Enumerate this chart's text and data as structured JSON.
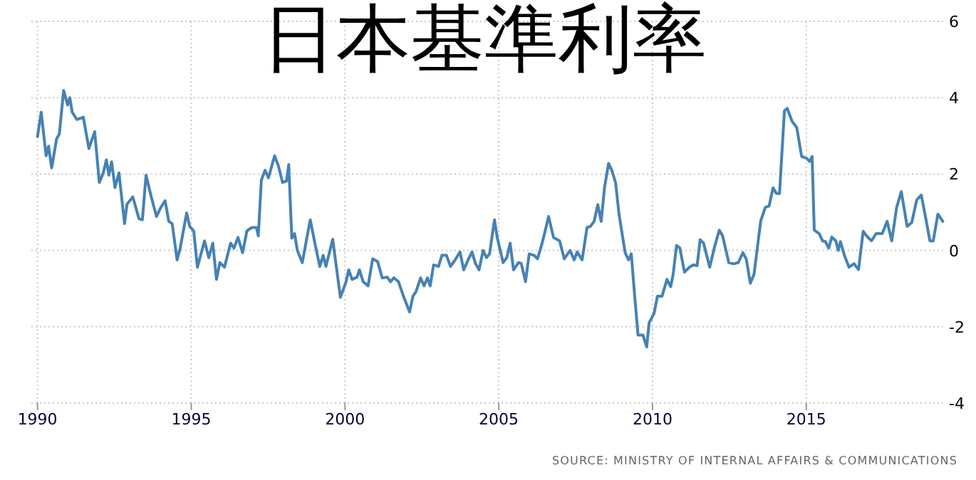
{
  "chart_data": {
    "type": "line",
    "title": "日本基準利率",
    "x": [
      1990.0,
      1990.12,
      1990.28,
      1990.36,
      1990.46,
      1990.62,
      1990.71,
      1990.85,
      1990.98,
      1991.05,
      1991.13,
      1991.28,
      1991.49,
      1991.67,
      1991.86,
      1992.01,
      1992.14,
      1992.24,
      1992.32,
      1992.41,
      1992.52,
      1992.65,
      1992.83,
      1992.91,
      1993.1,
      1993.3,
      1993.41,
      1993.53,
      1993.7,
      1993.87,
      1994.02,
      1994.15,
      1994.27,
      1994.38,
      1994.54,
      1994.64,
      1994.85,
      1994.95,
      1995.08,
      1995.2,
      1995.43,
      1995.57,
      1995.7,
      1995.82,
      1995.93,
      1996.08,
      1996.28,
      1996.39,
      1996.52,
      1996.67,
      1996.81,
      1996.97,
      1997.12,
      1997.18,
      1997.28,
      1997.4,
      1997.51,
      1997.71,
      1997.83,
      1997.97,
      1998.1,
      1998.17,
      1998.27,
      1998.36,
      1998.45,
      1998.61,
      1998.87,
      1999.02,
      1999.18,
      1999.29,
      1999.38,
      1999.6,
      1999.85,
      2000.03,
      2000.12,
      2000.23,
      2000.39,
      2000.47,
      2000.59,
      2000.75,
      2000.9,
      2001.06,
      2001.21,
      2001.37,
      2001.48,
      2001.59,
      2001.74,
      2001.9,
      2002.1,
      2002.21,
      2002.31,
      2002.46,
      2002.57,
      2002.68,
      2002.77,
      2002.88,
      2003.04,
      2003.15,
      2003.3,
      2003.43,
      2003.58,
      2003.74,
      2003.86,
      2004.02,
      2004.13,
      2004.24,
      2004.36,
      2004.49,
      2004.6,
      2004.7,
      2004.86,
      2004.95,
      2005.14,
      2005.26,
      2005.37,
      2005.48,
      2005.64,
      2005.73,
      2005.87,
      2005.99,
      2006.15,
      2006.26,
      2006.39,
      2006.51,
      2006.62,
      2006.78,
      2006.98,
      2007.13,
      2007.32,
      2007.45,
      2007.55,
      2007.71,
      2007.87,
      2007.98,
      2008.1,
      2008.22,
      2008.33,
      2008.44,
      2008.57,
      2008.68,
      2008.8,
      2008.91,
      2009.11,
      2009.22,
      2009.31,
      2009.42,
      2009.53,
      2009.69,
      2009.81,
      2009.89,
      2010.05,
      2010.16,
      2010.31,
      2010.47,
      2010.59,
      2010.67,
      2010.78,
      2010.89,
      2011.04,
      2011.2,
      2011.32,
      2011.45,
      2011.55,
      2011.66,
      2011.86,
      2012.02,
      2012.17,
      2012.28,
      2012.48,
      2012.64,
      2012.79,
      2012.94,
      2013.05,
      2013.18,
      2013.3,
      2013.52,
      2013.67,
      2013.79,
      2013.92,
      2014.03,
      2014.13,
      2014.29,
      2014.38,
      2014.54,
      2014.69,
      2014.85,
      2015.0,
      2015.11,
      2015.19,
      2015.26,
      2015.42,
      2015.53,
      2015.62,
      2015.73,
      2015.83,
      2015.96,
      2016.04,
      2016.11,
      2016.24,
      2016.39,
      2016.55,
      2016.7,
      2016.85,
      2016.96,
      2017.12,
      2017.27,
      2017.47,
      2017.63,
      2017.78,
      2017.94,
      2018.09,
      2018.28,
      2018.43,
      2018.59,
      2018.74,
      2018.86,
      2019.02,
      2019.13,
      2019.28,
      2019.44
    ],
    "series": [
      {
        "color": "#4682b4",
        "values": [
          2.98,
          3.62,
          2.48,
          2.73,
          2.16,
          2.92,
          3.05,
          4.19,
          3.81,
          4.0,
          3.62,
          3.43,
          3.49,
          2.67,
          3.11,
          1.78,
          2.03,
          2.37,
          1.97,
          2.32,
          1.65,
          2.03,
          0.7,
          1.21,
          1.4,
          0.83,
          0.8,
          1.97,
          1.4,
          0.89,
          1.14,
          1.3,
          0.76,
          0.7,
          -0.25,
          0.06,
          0.98,
          0.63,
          0.51,
          -0.44,
          0.25,
          -0.19,
          0.19,
          -0.76,
          -0.32,
          -0.44,
          0.19,
          0.06,
          0.34,
          -0.06,
          0.51,
          0.6,
          0.6,
          0.38,
          1.84,
          2.1,
          1.9,
          2.48,
          2.22,
          1.78,
          1.82,
          2.25,
          0.32,
          0.44,
          0.0,
          -0.32,
          0.8,
          0.19,
          -0.42,
          -0.13,
          -0.42,
          0.29,
          -1.23,
          -0.83,
          -0.51,
          -0.76,
          -0.7,
          -0.51,
          -0.82,
          -0.93,
          -0.22,
          -0.29,
          -0.72,
          -0.7,
          -0.82,
          -0.72,
          -0.82,
          -1.2,
          -1.61,
          -1.2,
          -1.08,
          -0.72,
          -0.93,
          -0.72,
          -0.93,
          -0.38,
          -0.42,
          -0.13,
          -0.13,
          -0.42,
          -0.25,
          -0.04,
          -0.51,
          -0.22,
          -0.04,
          -0.34,
          -0.51,
          0.0,
          -0.19,
          -0.09,
          0.8,
          0.34,
          -0.32,
          -0.19,
          0.19,
          -0.51,
          -0.32,
          -0.34,
          -0.82,
          -0.09,
          -0.13,
          -0.22,
          0.13,
          0.51,
          0.89,
          0.34,
          0.25,
          -0.22,
          0.0,
          -0.25,
          -0.04,
          -0.25,
          0.6,
          0.63,
          0.76,
          1.2,
          0.76,
          1.65,
          2.28,
          2.09,
          1.77,
          0.95,
          -0.06,
          -0.25,
          -0.09,
          -1.2,
          -2.22,
          -2.22,
          -2.53,
          -1.9,
          -1.65,
          -1.2,
          -1.2,
          -0.76,
          -0.95,
          -0.63,
          0.13,
          0.06,
          -0.57,
          -0.44,
          -0.38,
          -0.4,
          0.28,
          0.19,
          -0.44,
          0.1,
          0.53,
          0.38,
          -0.32,
          -0.35,
          -0.32,
          -0.06,
          -0.23,
          -0.86,
          -0.63,
          0.78,
          1.13,
          1.16,
          1.64,
          1.49,
          1.49,
          3.66,
          3.72,
          3.38,
          3.22,
          2.46,
          2.42,
          2.33,
          2.46,
          0.53,
          0.44,
          0.25,
          0.23,
          0.06,
          0.35,
          0.25,
          0.0,
          0.23,
          -0.13,
          -0.44,
          -0.35,
          -0.5,
          0.5,
          0.38,
          0.25,
          0.44,
          0.44,
          0.76,
          0.25,
          1.13,
          1.54,
          0.63,
          0.73,
          1.32,
          1.45,
          0.95,
          0.25,
          0.25,
          0.95,
          0.76
        ]
      }
    ],
    "xlim": [
      1989.8,
      2019.5
    ],
    "xticks": [
      1990,
      1995,
      2000,
      2005,
      2010,
      2015
    ],
    "ylim": [
      -4,
      6
    ],
    "yticks": [
      -4,
      -2,
      0,
      2,
      4,
      6
    ],
    "grid": true,
    "marker": "none",
    "line_style": "solid",
    "annotations": [
      "SOURCE: MINISTRY OF INTERNAL AFFAIRS & COMMUNICATIONS"
    ]
  }
}
